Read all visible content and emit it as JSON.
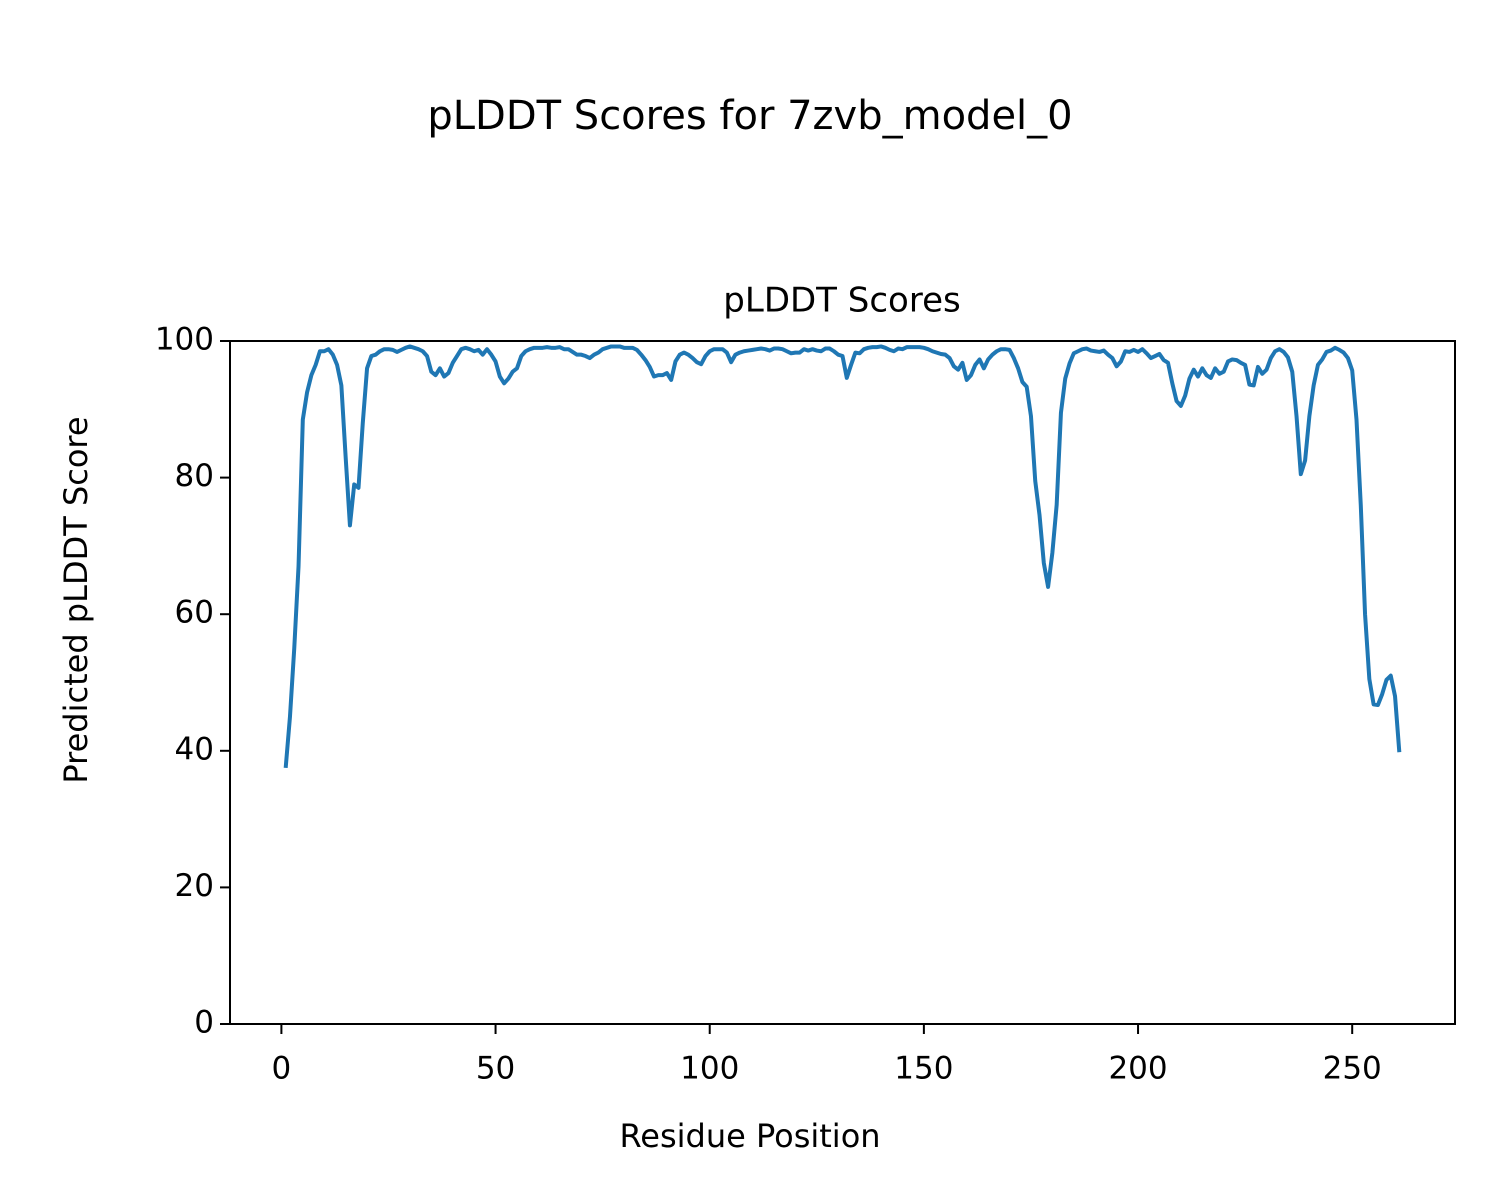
{
  "chart_data": {
    "type": "line",
    "title": "pLDDT Scores for 7zvb_model_0",
    "subtitle": "pLDDT Scores",
    "x_label": "Residue Position",
    "y_label": "Predicted pLDDT Score",
    "color": "#1f77b4",
    "xlim": [
      -12,
      274
    ],
    "ylim": [
      0,
      100
    ],
    "xticks": [
      0,
      50,
      100,
      150,
      200,
      250
    ],
    "yticks": [
      0,
      20,
      40,
      60,
      80,
      100
    ],
    "x": [
      1,
      2,
      3,
      4,
      5,
      6,
      7,
      8,
      9,
      10,
      11,
      12,
      13,
      14,
      15,
      16,
      17,
      18,
      19,
      20,
      21,
      22,
      23,
      24,
      25,
      26,
      27,
      28,
      29,
      30,
      31,
      32,
      33,
      34,
      35,
      36,
      37,
      38,
      39,
      40,
      41,
      42,
      43,
      44,
      45,
      46,
      47,
      48,
      49,
      50,
      51,
      52,
      53,
      54,
      55,
      56,
      57,
      58,
      59,
      60,
      61,
      62,
      63,
      64,
      65,
      66,
      67,
      68,
      69,
      70,
      71,
      72,
      73,
      74,
      75,
      76,
      77,
      78,
      79,
      80,
      81,
      82,
      83,
      84,
      85,
      86,
      87,
      88,
      89,
      90,
      91,
      92,
      93,
      94,
      95,
      96,
      97,
      98,
      99,
      100,
      101,
      102,
      103,
      104,
      105,
      106,
      107,
      108,
      109,
      110,
      111,
      112,
      113,
      114,
      115,
      116,
      117,
      118,
      119,
      120,
      121,
      122,
      123,
      124,
      125,
      126,
      127,
      128,
      129,
      130,
      131,
      132,
      133,
      134,
      135,
      136,
      137,
      138,
      139,
      140,
      141,
      142,
      143,
      144,
      145,
      146,
      147,
      148,
      149,
      150,
      151,
      152,
      153,
      154,
      155,
      156,
      157,
      158,
      159,
      160,
      161,
      162,
      163,
      164,
      165,
      166,
      167,
      168,
      169,
      170,
      171,
      172,
      173,
      174,
      175,
      176,
      177,
      178,
      179,
      180,
      181,
      182,
      183,
      184,
      185,
      186,
      187,
      188,
      189,
      190,
      191,
      192,
      193,
      194,
      195,
      196,
      197,
      198,
      199,
      200,
      201,
      202,
      203,
      204,
      205,
      206,
      207,
      208,
      209,
      210,
      211,
      212,
      213,
      214,
      215,
      216,
      217,
      218,
      219,
      220,
      221,
      222,
      223,
      224,
      225,
      226,
      227,
      228,
      229,
      230,
      231,
      232,
      233,
      234,
      235,
      236,
      237,
      238,
      239,
      240,
      241,
      242,
      243,
      244,
      245,
      246,
      247,
      248,
      249,
      250,
      251,
      252,
      253,
      254,
      255,
      256,
      257,
      258,
      259,
      260,
      261
    ],
    "values": [
      37.5,
      45,
      55,
      67,
      88.5,
      92.5,
      95,
      96.5,
      98.5,
      98.5,
      98.8,
      98,
      96.5,
      93.5,
      83,
      73,
      79,
      78.5,
      88,
      96,
      97.8,
      98,
      98.5,
      98.8,
      98.8,
      98.7,
      98.4,
      98.7,
      99,
      99.2,
      99,
      98.8,
      98.5,
      97.8,
      95.5,
      95,
      96,
      94.8,
      95.3,
      96.8,
      97.8,
      98.8,
      99,
      98.8,
      98.5,
      98.7,
      98,
      98.8,
      98,
      97,
      94.8,
      93.8,
      94.5,
      95.5,
      96,
      97.8,
      98.5,
      98.8,
      99,
      99,
      99,
      99.1,
      99,
      99,
      99.1,
      98.8,
      98.8,
      98.4,
      98,
      98,
      97.8,
      97.5,
      98,
      98.3,
      98.8,
      99,
      99.2,
      99.2,
      99.2,
      99,
      99,
      99,
      98.7,
      98,
      97.2,
      96.2,
      94.8,
      95,
      95,
      95.3,
      94.3,
      97,
      98,
      98.3,
      98,
      97.5,
      96.9,
      96.6,
      97.8,
      98.5,
      98.8,
      98.8,
      98.8,
      98.3,
      96.9,
      98,
      98.3,
      98.5,
      98.6,
      98.7,
      98.8,
      98.9,
      98.8,
      98.6,
      98.9,
      98.9,
      98.8,
      98.5,
      98.2,
      98.3,
      98.3,
      98.8,
      98.6,
      98.8,
      98.6,
      98.5,
      98.9,
      98.9,
      98.5,
      98,
      97.8,
      94.6,
      96.5,
      98.3,
      98.2,
      98.8,
      99,
      99.1,
      99.1,
      99.2,
      99,
      98.7,
      98.5,
      98.9,
      98.8,
      99.1,
      99.1,
      99.1,
      99.1,
      99,
      98.8,
      98.5,
      98.3,
      98.1,
      98,
      97.5,
      96.3,
      95.8,
      96.8,
      94.3,
      95,
      96.5,
      97.3,
      96,
      97.3,
      98,
      98.5,
      98.8,
      98.8,
      98.7,
      97.5,
      96,
      94,
      93.3,
      89,
      79.5,
      74.5,
      67.5,
      64,
      69,
      76,
      89.5,
      94.5,
      96.7,
      98.2,
      98.5,
      98.8,
      98.9,
      98.6,
      98.5,
      98.4,
      98.6,
      98,
      97.5,
      96.3,
      97,
      98.5,
      98.4,
      98.7,
      98.4,
      98.8,
      98.2,
      97.5,
      97.8,
      98.1,
      97.2,
      96.8,
      93.8,
      91.2,
      90.5,
      92,
      94.5,
      95.8,
      94.8,
      96,
      95,
      94.6,
      96,
      95.2,
      95.5,
      97,
      97.3,
      97.2,
      96.8,
      96.5,
      93.6,
      93.5,
      96.2,
      95.2,
      95.8,
      97.5,
      98.5,
      98.8,
      98.4,
      97.6,
      95.5,
      89,
      80.5,
      82.5,
      89,
      93.5,
      96.5,
      97.3,
      98.4,
      98.6,
      99,
      98.7,
      98.3,
      97.5,
      95.7,
      88.5,
      76,
      60,
      50.5,
      46.8,
      46.7,
      48.3,
      50.4,
      51,
      48,
      39.8
    ]
  }
}
